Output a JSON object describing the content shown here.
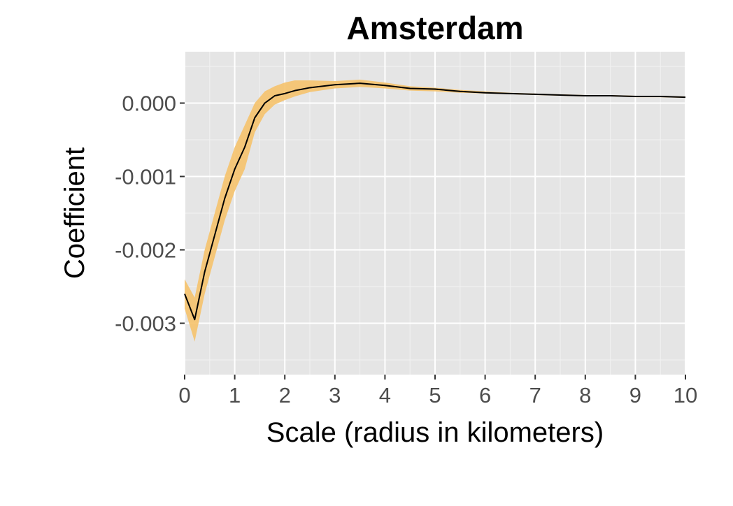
{
  "chart_data": {
    "type": "line",
    "title": "Amsterdam",
    "xlabel": "Scale (radius in kilometers)",
    "ylabel": "Coefficient",
    "xlim": [
      0,
      10
    ],
    "ylim": [
      -0.0037,
      0.0007
    ],
    "x_ticks": [
      0,
      1,
      2,
      3,
      4,
      5,
      6,
      7,
      8,
      9,
      10
    ],
    "x_tick_labels": [
      "0",
      "1",
      "2",
      "3",
      "4",
      "5",
      "6",
      "7",
      "8",
      "9",
      "10"
    ],
    "y_ticks": [
      0.0,
      -0.001,
      -0.002,
      -0.003
    ],
    "y_tick_labels": [
      "0.000",
      "-0.001",
      "-0.002",
      "-0.003"
    ],
    "grid": true,
    "panel_background": "#e5e5e5",
    "line_color": "#000000",
    "band_color": "#f5c26b",
    "series": [
      {
        "x": [
          0,
          0.2,
          0.4,
          0.6,
          0.8,
          1.0,
          1.2,
          1.4,
          1.6,
          1.8,
          2.0,
          2.2,
          2.5,
          3.0,
          3.5,
          4.0,
          4.5,
          5.0,
          5.5,
          6.0,
          6.5,
          7.0,
          7.5,
          8.0,
          8.5,
          9.0,
          9.5,
          10.0
        ],
        "y": [
          -0.0026,
          -0.00295,
          -0.0023,
          -0.0018,
          -0.0013,
          -0.0009,
          -0.0006,
          -0.0002,
          0.0,
          0.0001,
          0.00013,
          0.00017,
          0.00021,
          0.00025,
          0.00027,
          0.00024,
          0.0002,
          0.00019,
          0.00016,
          0.00014,
          0.00013,
          0.00012,
          0.00011,
          0.0001,
          0.0001,
          9e-05,
          9e-05,
          8e-05
        ],
        "lower": [
          -0.0028,
          -0.00325,
          -0.0026,
          -0.0021,
          -0.0016,
          -0.0012,
          -0.0009,
          -0.0004,
          -0.00015,
          -2e-05,
          4e-05,
          9e-05,
          0.00015,
          0.0002,
          0.00022,
          0.0002,
          0.00017,
          0.00016,
          0.00014,
          0.00013,
          0.00012,
          0.00011,
          0.0001,
          9e-05,
          9e-05,
          8e-05,
          8e-05,
          7e-05
        ],
        "upper": [
          -0.0024,
          -0.00265,
          -0.002,
          -0.0015,
          -0.001,
          -0.0006,
          -0.0003,
          0.0,
          0.00016,
          0.00023,
          0.00028,
          0.00031,
          0.00031,
          0.0003,
          0.00032,
          0.00028,
          0.00023,
          0.00021,
          0.00018,
          0.00016,
          0.00014,
          0.00013,
          0.00012,
          0.00011,
          0.00011,
          0.0001,
          0.0001,
          9e-05
        ]
      }
    ]
  }
}
